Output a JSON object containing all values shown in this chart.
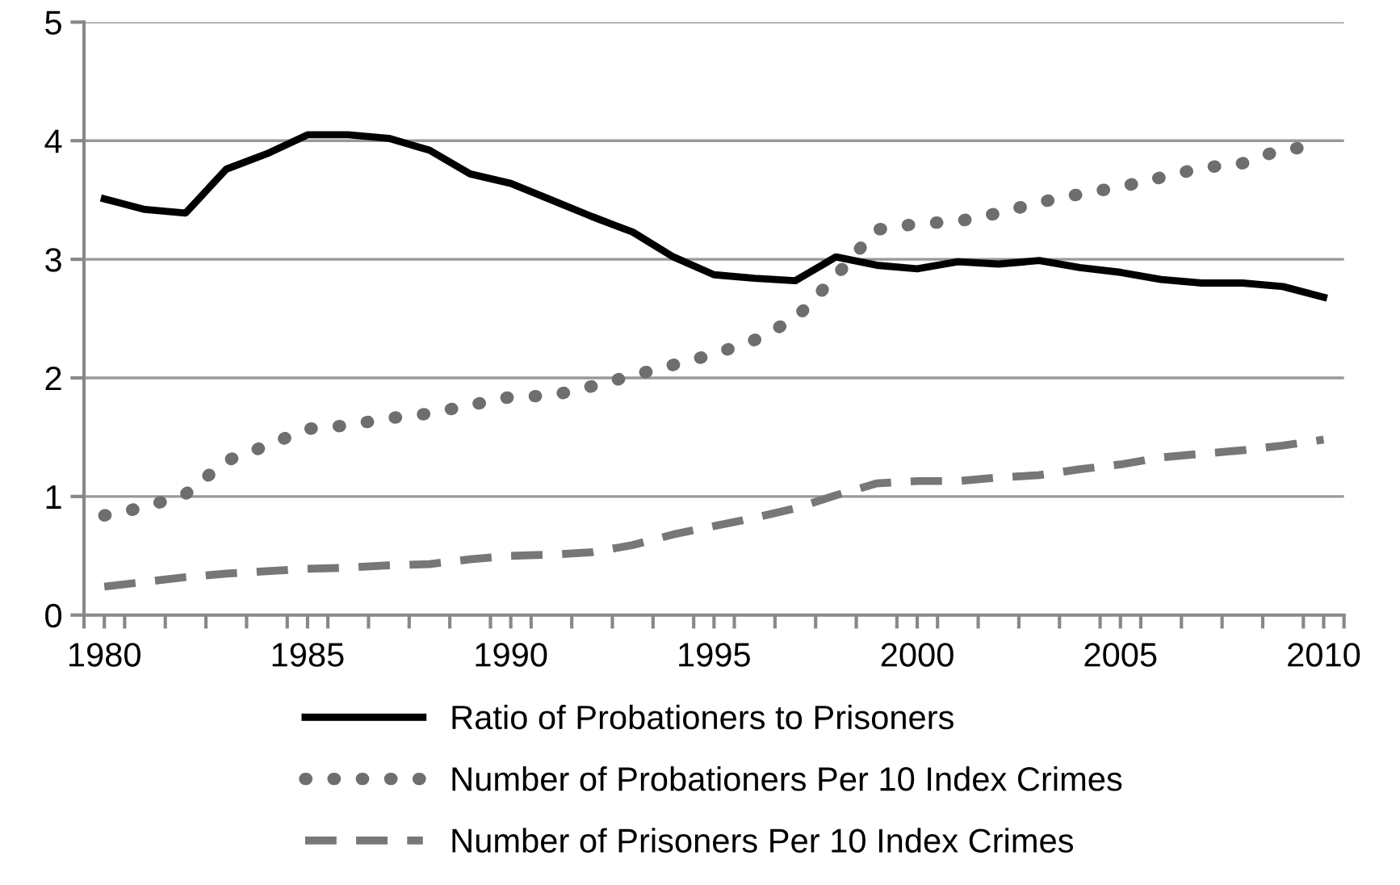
{
  "chart_data": {
    "type": "line",
    "x": [
      1980,
      1981,
      1982,
      1983,
      1984,
      1985,
      1986,
      1987,
      1988,
      1989,
      1990,
      1991,
      1992,
      1993,
      1994,
      1995,
      1996,
      1997,
      1998,
      1999,
      2000,
      2001,
      2002,
      2003,
      2004,
      2005,
      2006,
      2007,
      2008,
      2009,
      2010
    ],
    "series": [
      {
        "name": "Ratio of Probationers to Prisoners",
        "color": "#000000",
        "line_style": "solid",
        "values": [
          3.51,
          3.42,
          3.39,
          3.76,
          3.89,
          4.05,
          4.05,
          4.02,
          3.92,
          3.72,
          3.64,
          3.5,
          3.36,
          3.23,
          3.02,
          2.87,
          2.84,
          2.82,
          3.02,
          2.95,
          2.92,
          2.98,
          2.96,
          2.99,
          2.93,
          2.89,
          2.83,
          2.8,
          2.8,
          2.77,
          2.68
        ]
      },
      {
        "name": "Number of Probationers Per 10 Index Crimes",
        "color": "#6e6e6e",
        "line_style": "dotted",
        "values": [
          0.84,
          0.91,
          1.02,
          1.3,
          1.43,
          1.57,
          1.6,
          1.66,
          1.7,
          1.77,
          1.84,
          1.85,
          1.93,
          2.02,
          2.11,
          2.2,
          2.32,
          2.5,
          2.86,
          3.25,
          3.3,
          3.32,
          3.39,
          3.48,
          3.55,
          3.61,
          3.69,
          3.77,
          3.81,
          3.93,
          3.95
        ]
      },
      {
        "name": "Number of Prisoners Per 10 Index Crimes",
        "color": "#777777",
        "line_style": "dashed",
        "values": [
          0.24,
          0.28,
          0.32,
          0.35,
          0.37,
          0.39,
          0.4,
          0.42,
          0.43,
          0.47,
          0.5,
          0.51,
          0.53,
          0.59,
          0.68,
          0.75,
          0.82,
          0.9,
          1.01,
          1.11,
          1.13,
          1.13,
          1.16,
          1.18,
          1.23,
          1.27,
          1.33,
          1.36,
          1.39,
          1.43,
          1.48
        ]
      }
    ],
    "xlim": [
      1979.5,
      2010.5
    ],
    "xticks": [
      {
        "value": 1979.5,
        "label": null
      },
      1980,
      {
        "value": 1980.5,
        "label": null
      },
      {
        "value": 1981.5,
        "label": null
      },
      {
        "value": 1982.5,
        "label": null
      },
      {
        "value": 1983.5,
        "label": null
      },
      {
        "value": 1984.5,
        "label": null
      },
      1985,
      {
        "value": 1985.5,
        "label": null
      },
      {
        "value": 1986.5,
        "label": null
      },
      {
        "value": 1987.5,
        "label": null
      },
      {
        "value": 1988.5,
        "label": null
      },
      {
        "value": 1989.5,
        "label": null
      },
      1990,
      {
        "value": 1990.5,
        "label": null
      },
      {
        "value": 1991.5,
        "label": null
      },
      {
        "value": 1992.5,
        "label": null
      },
      {
        "value": 1993.5,
        "label": null
      },
      {
        "value": 1994.5,
        "label": null
      },
      1995,
      {
        "value": 1995.5,
        "label": null
      },
      {
        "value": 1996.5,
        "label": null
      },
      {
        "value": 1997.5,
        "label": null
      },
      {
        "value": 1998.5,
        "label": null
      },
      {
        "value": 1999.5,
        "label": null
      },
      2000,
      {
        "value": 2000.5,
        "label": null
      },
      {
        "value": 2001.5,
        "label": null
      },
      {
        "value": 2002.5,
        "label": null
      },
      {
        "value": 2003.5,
        "label": null
      },
      {
        "value": 2004.5,
        "label": null
      },
      2005,
      {
        "value": 2005.5,
        "label": null
      },
      {
        "value": 2006.5,
        "label": null
      },
      {
        "value": 2007.5,
        "label": null
      },
      {
        "value": 2008.5,
        "label": null
      },
      {
        "value": 2009.5,
        "label": null
      },
      2010,
      {
        "value": 2010.5,
        "label": null
      }
    ],
    "ylim": [
      0,
      5
    ],
    "yticks": [
      0,
      1,
      2,
      3,
      4,
      5
    ],
    "grid": "y",
    "legend": "bottom"
  }
}
